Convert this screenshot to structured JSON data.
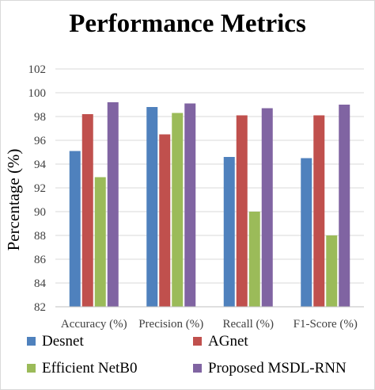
{
  "chart_data": {
    "type": "bar",
    "title": "Performance Metrics",
    "xlabel": "",
    "ylabel": "Percentage (%)",
    "ylim": [
      82,
      102
    ],
    "yticks": [
      82,
      84,
      86,
      88,
      90,
      92,
      94,
      96,
      98,
      100,
      102
    ],
    "grid": true,
    "legend_position": "bottom",
    "categories": [
      "Accuracy (%)",
      "Precision (%)",
      "Recall (%)",
      "F1-Score (%)"
    ],
    "series": [
      {
        "name": "Desnet",
        "color": "#4f81bd",
        "values": [
          95.1,
          98.8,
          94.6,
          94.5
        ]
      },
      {
        "name": "AGnet",
        "color": "#c0504d",
        "values": [
          98.2,
          96.5,
          98.1,
          98.1
        ]
      },
      {
        "name": "Efficient NetB0",
        "color": "#9bbb59",
        "values": [
          92.9,
          98.3,
          90.0,
          88.0
        ]
      },
      {
        "name": "Proposed MSDL-RNN",
        "color": "#8064a2",
        "values": [
          99.2,
          99.1,
          98.7,
          99.0
        ]
      }
    ]
  }
}
